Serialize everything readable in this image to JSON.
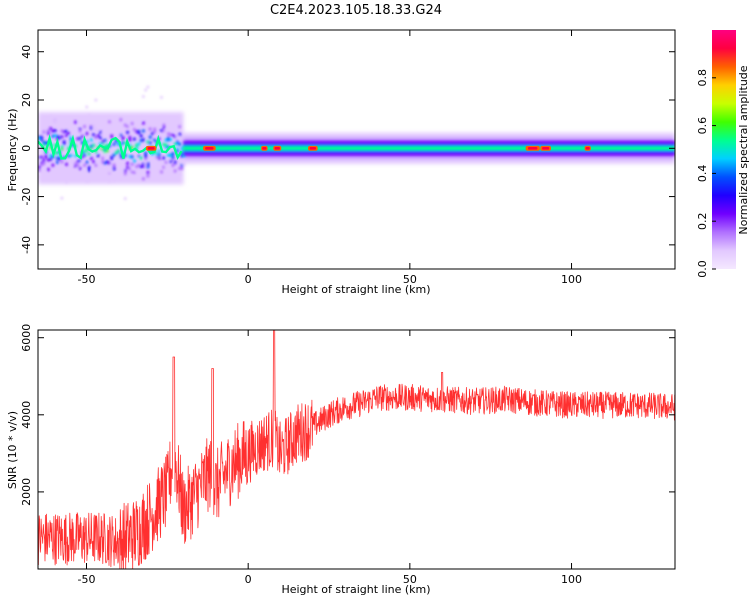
{
  "page": {
    "title": "C2E4.2023.105.18.33.G24"
  },
  "colorbar": {
    "label": "Normalized spectral amplitude",
    "ticks": [
      "0.0",
      "0.2",
      "0.4",
      "0.6",
      "0.8"
    ],
    "tick_values": [
      0.0,
      0.2,
      0.4,
      0.6,
      0.8
    ],
    "range": [
      0,
      1
    ],
    "colormap": [
      "#f4e8ff",
      "#e2c8ff",
      "#b070ff",
      "#7000ff",
      "#2000ff",
      "#0050ff",
      "#00d0ff",
      "#00ff90",
      "#40ff00",
      "#c8ff00",
      "#ffd000",
      "#ff6000",
      "#ff0040",
      "#ff0080"
    ]
  },
  "chart_data": [
    {
      "id": "spectrogram",
      "type": "heatmap",
      "xlabel": "Height of straight line (km)",
      "ylabel": "Frequency (Hz)",
      "xlim": [
        -65,
        132
      ],
      "ylim": [
        -50,
        49
      ],
      "xticks": [
        "-50",
        "0",
        "50",
        "100"
      ],
      "xtick_values": [
        -50,
        0,
        50,
        100
      ],
      "yticks": [
        "40",
        "20",
        "0",
        "-20",
        "-40"
      ],
      "ytick_values": [
        40,
        20,
        0,
        -20,
        -40
      ],
      "grid": false,
      "bands": [
        {
          "x": [
            -65,
            -20
          ],
          "freq_center": 0,
          "halfwidth_hz": 10,
          "amplitude": 0.45
        },
        {
          "x": [
            -20,
            132
          ],
          "freq_center": 0,
          "halfwidth_hz": 4,
          "amplitude": 0.5
        }
      ],
      "peaks_x": [
        -30,
        -12,
        5,
        9,
        20,
        88,
        92,
        105
      ]
    },
    {
      "id": "snr",
      "type": "line",
      "xlabel": "Height of straight line (km)",
      "ylabel": "SNR (10 * v/v)",
      "xlim": [
        -65,
        132
      ],
      "ylim": [
        0,
        6200
      ],
      "xticks": [
        "-50",
        "0",
        "50",
        "100"
      ],
      "xtick_values": [
        -50,
        0,
        50,
        100
      ],
      "yticks": [
        "6000",
        "4000",
        "2000"
      ],
      "ytick_values": [
        6000,
        4000,
        2000
      ],
      "color": "#ff3030",
      "grid": false,
      "series": [
        {
          "x": [
            -65,
            -55,
            -45,
            -40,
            -35,
            -30,
            -25,
            -23,
            -20,
            -15,
            -12,
            -10,
            -5,
            0,
            5,
            8,
            10,
            15,
            20,
            25,
            30,
            35,
            40,
            50,
            60,
            70,
            80,
            90,
            100,
            110,
            120,
            132
          ],
          "values": [
            800,
            800,
            800,
            700,
            900,
            1400,
            2000,
            3000,
            1500,
            2100,
            2500,
            2100,
            2700,
            3000,
            3300,
            3400,
            3000,
            3500,
            3700,
            4000,
            4200,
            4300,
            4450,
            4450,
            4400,
            4350,
            4400,
            4300,
            4250,
            4250,
            4250,
            4200
          ]
        }
      ],
      "spikes": [
        {
          "x": -23,
          "y": 5500
        },
        {
          "x": -11,
          "y": 5200
        },
        {
          "x": 8,
          "y": 6200
        },
        {
          "x": 60,
          "y": 5100
        }
      ]
    }
  ]
}
